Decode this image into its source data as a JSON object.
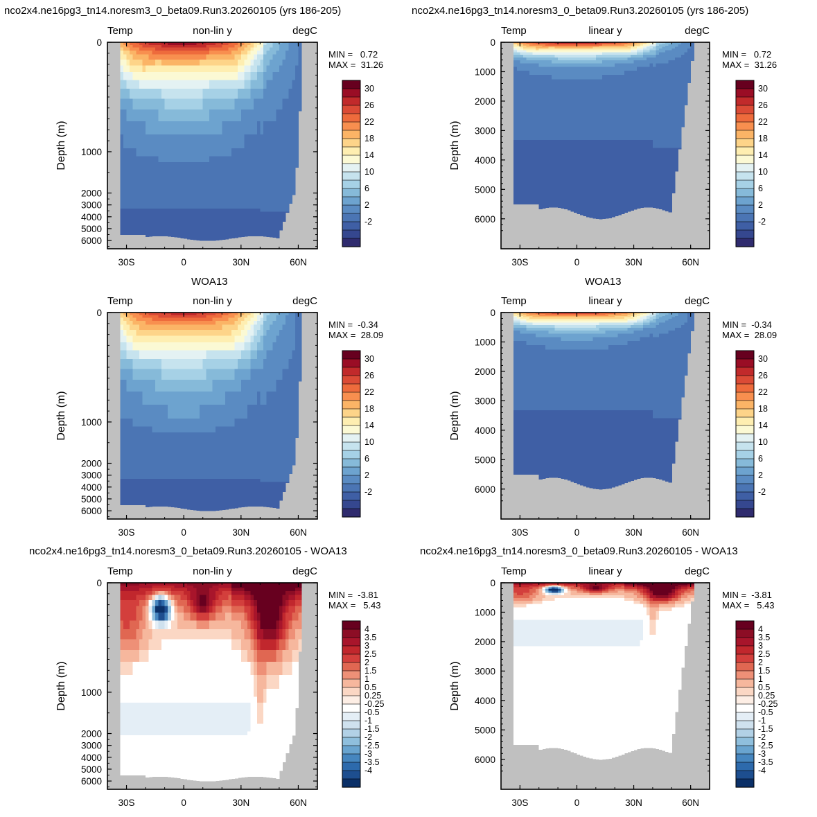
{
  "row_titles": [
    [
      "nco2x4.ne16pg3_tn14.noresm3_0_beta09.Run3.20260105 (yrs 186-205)",
      "nco2x4.ne16pg3_tn14.noresm3_0_beta09.Run3.20260105 (yrs 186-205)"
    ],
    [
      "WOA13",
      "WOA13"
    ],
    [
      "nco2x4.ne16pg3_tn14.noresm3_0_beta09.Run3.20260105 - WOA13",
      "nco2x4.ne16pg3_tn14.noresm3_0_beta09.Run3.20260105 - WOA13"
    ]
  ],
  "colorbars": {
    "temperature": {
      "labels": [
        "30",
        "26",
        "22",
        "18",
        "14",
        "10",
        "6",
        "2",
        "-2"
      ],
      "colors": [
        "#67001f",
        "#9a0d25",
        "#c12a2b",
        "#db4b36",
        "#ee6b3c",
        "#f88f4f",
        "#fbb466",
        "#fdd489",
        "#feeeb1",
        "#fbf9d4",
        "#e4f2f3",
        "#c6e3ee",
        "#a6d1e6",
        "#86bad9",
        "#6da3cf",
        "#5a8bc2",
        "#4b75b4",
        "#3f5fa5",
        "#35478f",
        "#2f2b6e"
      ]
    },
    "difference": {
      "labels": [
        "4",
        "3.5",
        "3",
        "2.5",
        "2",
        "1.5",
        "1",
        "0.5",
        "0.25",
        "-0.25",
        "-0.5",
        "-1",
        "-1.5",
        "-2",
        "-2.5",
        "-3",
        "-3.5",
        "-4"
      ],
      "colors": [
        "#67001f",
        "#8c0d25",
        "#a8152b",
        "#c1272d",
        "#d33f3c",
        "#e06752",
        "#ee9077",
        "#f6b79d",
        "#fbd7c4",
        "#fdeee5",
        "#ffffff",
        "#e4eef6",
        "#cfe1ee",
        "#b2d1e6",
        "#8fbfdd",
        "#69a4cf",
        "#4686bf",
        "#2d6aac",
        "#1d4e8f",
        "#0b3068"
      ]
    }
  },
  "chart_data": [
    {
      "type": "heatmap",
      "panel": "model, non-lin y",
      "left_label": "Temp",
      "center_label": "non-lin y",
      "right_label": "degC",
      "ylabel": "Depth (m)",
      "x_ticks": [
        "30S",
        "0",
        "30N",
        "60N"
      ],
      "y_ticks": [
        "0",
        "1000",
        "2000",
        "3000",
        "4000",
        "5000",
        "6000"
      ],
      "y_scale": "non-linear",
      "stats": {
        "min": "MIN =   0.72",
        "max": "MAX =  31.26"
      },
      "colorbar": "temperature"
    },
    {
      "type": "heatmap",
      "panel": "model, linear y",
      "left_label": "Temp",
      "center_label": "linear y",
      "right_label": "degC",
      "ylabel": "Depth (m)",
      "x_ticks": [
        "30S",
        "0",
        "30N",
        "60N"
      ],
      "y_ticks": [
        "0",
        "1000",
        "2000",
        "3000",
        "4000",
        "5000",
        "6000"
      ],
      "y_scale": "linear",
      "stats": {
        "min": "MIN =   0.72",
        "max": "MAX =  31.26"
      },
      "colorbar": "temperature"
    },
    {
      "type": "heatmap",
      "panel": "WOA13, non-lin y",
      "left_label": "Temp",
      "center_label": "non-lin y",
      "right_label": "degC",
      "ylabel": "Depth (m)",
      "x_ticks": [
        "30S",
        "0",
        "30N",
        "60N"
      ],
      "y_ticks": [
        "0",
        "1000",
        "2000",
        "3000",
        "4000",
        "5000",
        "6000"
      ],
      "y_scale": "non-linear",
      "stats": {
        "min": "MIN =  -0.34",
        "max": "MAX =  28.09"
      },
      "colorbar": "temperature"
    },
    {
      "type": "heatmap",
      "panel": "WOA13, linear y",
      "left_label": "Temp",
      "center_label": "linear y",
      "right_label": "degC",
      "ylabel": "Depth (m)",
      "x_ticks": [
        "30S",
        "0",
        "30N",
        "60N"
      ],
      "y_ticks": [
        "0",
        "1000",
        "2000",
        "3000",
        "4000",
        "5000",
        "6000"
      ],
      "y_scale": "linear",
      "stats": {
        "min": "MIN =  -0.34",
        "max": "MAX =  28.09"
      },
      "colorbar": "temperature"
    },
    {
      "type": "heatmap",
      "panel": "difference, non-lin y",
      "left_label": "Temp",
      "center_label": "non-lin y",
      "right_label": "degC",
      "ylabel": "Depth (m)",
      "x_ticks": [
        "30S",
        "0",
        "30N",
        "60N"
      ],
      "y_ticks": [
        "0",
        "1000",
        "2000",
        "3000",
        "4000",
        "5000",
        "6000"
      ],
      "y_scale": "non-linear",
      "stats": {
        "min": "MIN =  -3.81",
        "max": "MAX =   5.43"
      },
      "colorbar": "difference"
    },
    {
      "type": "heatmap",
      "panel": "difference, linear y",
      "left_label": "Temp",
      "center_label": "linear y",
      "right_label": "degC",
      "ylabel": "Depth (m)",
      "x_ticks": [
        "30S",
        "0",
        "30N",
        "60N"
      ],
      "y_ticks": [
        "0",
        "1000",
        "2000",
        "3000",
        "4000",
        "5000",
        "6000"
      ],
      "y_scale": "linear",
      "stats": {
        "min": "MIN =  -3.81",
        "max": "MAX =   5.43"
      },
      "colorbar": "difference"
    }
  ]
}
